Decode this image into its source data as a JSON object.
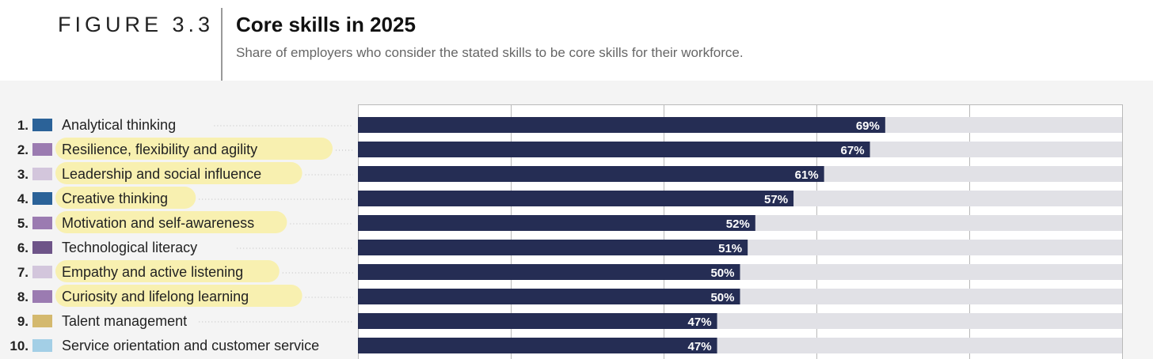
{
  "header": {
    "figure_label": "FIGURE 3.3",
    "title": "Core skills in 2025",
    "subtitle": "Share of employers who consider the stated skills to be core skills for their workforce."
  },
  "chart_data": {
    "type": "bar",
    "orientation": "horizontal",
    "xlim": [
      0,
      100
    ],
    "grid": true,
    "bar_color": "#252d54",
    "track_color": "#e1e1e6",
    "highlight_color": "#f8f0a8",
    "categories": [
      {
        "rank": "1.",
        "label": "Analytical thinking",
        "value": 69,
        "value_label": "69%",
        "swatch": "#2b6298",
        "highlighted": false
      },
      {
        "rank": "2.",
        "label": "Resilience, flexibility and agility",
        "value": 67,
        "value_label": "67%",
        "swatch": "#9b7bb1",
        "highlighted": true
      },
      {
        "rank": "3.",
        "label": "Leadership and social influence",
        "value": 61,
        "value_label": "61%",
        "swatch": "#d3c6dc",
        "highlighted": true
      },
      {
        "rank": "4.",
        "label": "Creative thinking",
        "value": 57,
        "value_label": "57%",
        "swatch": "#2b6298",
        "highlighted": true
      },
      {
        "rank": "5.",
        "label": "Motivation and self-awareness",
        "value": 52,
        "value_label": "52%",
        "swatch": "#9b7bb1",
        "highlighted": true
      },
      {
        "rank": "6.",
        "label": "Technological literacy",
        "value": 51,
        "value_label": "51%",
        "swatch": "#6e5488",
        "highlighted": false
      },
      {
        "rank": "7.",
        "label": "Empathy and active listening",
        "value": 50,
        "value_label": "50%",
        "swatch": "#d3c6dc",
        "highlighted": true
      },
      {
        "rank": "8.",
        "label": "Curiosity and lifelong learning",
        "value": 50,
        "value_label": "50%",
        "swatch": "#9b7bb1",
        "highlighted": true
      },
      {
        "rank": "9.",
        "label": "Talent management",
        "value": 47,
        "value_label": "47%",
        "swatch": "#d4b96e",
        "highlighted": false
      },
      {
        "rank": "10.",
        "label": "Service orientation and customer service",
        "value": 47,
        "value_label": "47%",
        "swatch": "#a3cfe6",
        "highlighted": false
      }
    ]
  }
}
